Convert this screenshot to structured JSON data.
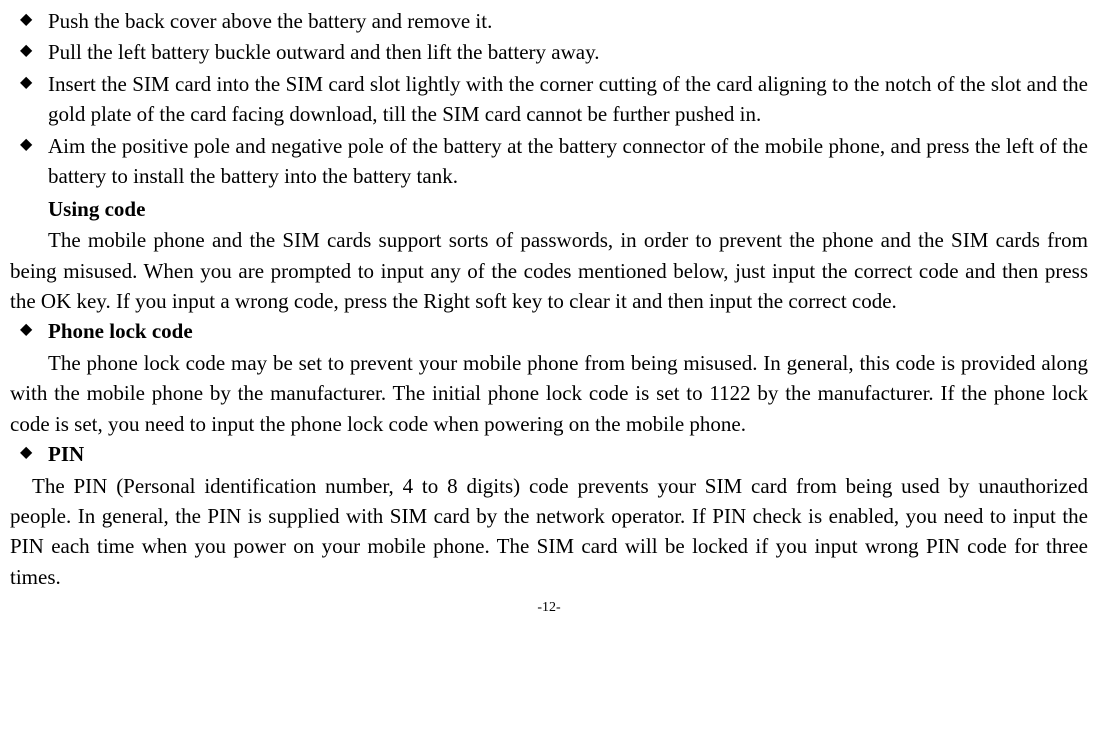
{
  "bullets1": {
    "item0": "Push the back cover above the battery and remove it.",
    "item1": "Pull the left battery buckle outward and then lift the battery away.",
    "item2": "Insert the SIM card into the SIM card slot lightly with the corner cutting of the card aligning to the notch of the slot and the gold plate of the card facing download, till the SIM card cannot be further pushed in.",
    "item3": "Aim the positive pole and negative pole of the battery at the battery connector of the mobile phone, and press the left of the battery to install the battery into the battery tank."
  },
  "sections": {
    "usingCode": {
      "heading": "Using code",
      "body": "The mobile phone and the SIM cards support sorts of passwords, in order to prevent the phone and the SIM cards from being misused. When you are prompted to input any of the codes mentioned below, just input the correct code and then press the OK key. If you input a wrong code, press the Right soft key to clear it and then input the correct code."
    },
    "phoneLock": {
      "heading": "Phone lock code",
      "body": "The phone lock code may be set to prevent your mobile phone from being misused. In general, this code is provided along with the mobile phone by the manufacturer. The initial phone lock code is set to 1122 by the manufacturer. If the phone lock code is set, you need to input the phone lock code when powering on the mobile phone."
    },
    "pin": {
      "heading": "PIN",
      "body": "The PIN (Personal identification number, 4 to 8 digits) code prevents your SIM card from being used by unauthorized people. In general, the PIN is supplied with SIM card by the network operator. If PIN check is enabled, you need to input the PIN each time when you power on your mobile phone. The SIM card will be locked if you input wrong PIN code for three times."
    }
  },
  "pageNumber": "-12-"
}
